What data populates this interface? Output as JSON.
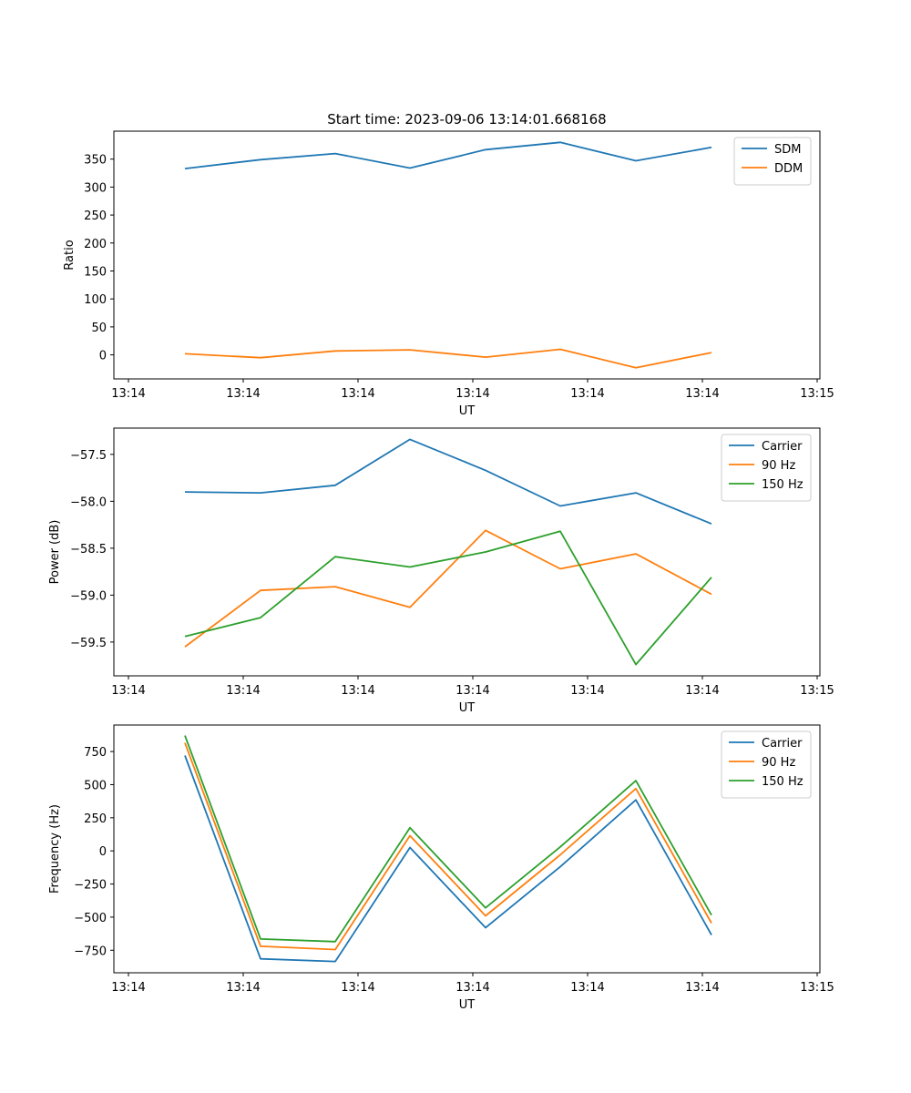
{
  "chart_data": [
    {
      "type": "line",
      "title": "Start time: 2023-09-06 13:14:01.668168",
      "xlabel": "UT",
      "ylabel": "Ratio",
      "x_tick_labels": [
        "13:14",
        "13:14",
        "13:14",
        "13:14",
        "13:14",
        "13:14",
        "13:14",
        "13:15"
      ],
      "y_ticks": [
        0,
        50,
        100,
        150,
        200,
        250,
        300,
        350
      ],
      "ylim": [
        -43,
        400
      ],
      "legend_position": "top-right",
      "series": [
        {
          "name": "SDM",
          "color": "#1f77b4",
          "values": [
            333,
            349,
            360,
            334,
            367,
            380,
            347,
            371
          ]
        },
        {
          "name": "DDM",
          "color": "#ff7f0e",
          "values": [
            2,
            -5,
            7,
            9,
            -4,
            10,
            -23,
            4
          ]
        }
      ]
    },
    {
      "type": "line",
      "title": "",
      "xlabel": "UT",
      "ylabel": "Power (dB)",
      "x_tick_labels": [
        "13:14",
        "13:14",
        "13:14",
        "13:14",
        "13:14",
        "13:14",
        "13:14",
        "13:15"
      ],
      "y_ticks": [
        -59.5,
        -59.0,
        -58.5,
        -58.0,
        -57.5
      ],
      "y_tick_labels": [
        "−59.5",
        "−59.0",
        "−58.5",
        "−58.0",
        "−57.5"
      ],
      "ylim": [
        -59.86,
        -57.22
      ],
      "legend_position": "top-right",
      "series": [
        {
          "name": "Carrier",
          "color": "#1f77b4",
          "values": [
            -57.9,
            -57.91,
            -57.83,
            -57.34,
            -57.67,
            -58.05,
            -57.91,
            -58.24
          ]
        },
        {
          "name": "90 Hz",
          "color": "#ff7f0e",
          "values": [
            -59.55,
            -58.95,
            -58.91,
            -59.13,
            -58.31,
            -58.72,
            -58.56,
            -58.99
          ]
        },
        {
          "name": "150 Hz",
          "color": "#2ca02c",
          "values": [
            -59.44,
            -59.24,
            -58.59,
            -58.7,
            -58.54,
            -58.32,
            -59.74,
            -58.81
          ]
        }
      ]
    },
    {
      "type": "line",
      "title": "",
      "xlabel": "UT",
      "ylabel": "Frequency (Hz)",
      "x_tick_labels": [
        "13:14",
        "13:14",
        "13:14",
        "13:14",
        "13:14",
        "13:14",
        "13:14",
        "13:15"
      ],
      "y_ticks": [
        -750,
        -500,
        -250,
        0,
        250,
        500,
        750
      ],
      "y_tick_labels": [
        "−750",
        "−500",
        "−250",
        "0",
        "250",
        "500",
        "750"
      ],
      "ylim": [
        -920,
        950
      ],
      "legend_position": "top-right",
      "series": [
        {
          "name": "Carrier",
          "color": "#1f77b4",
          "values": [
            720,
            -815,
            -835,
            25,
            -580,
            -120,
            385,
            -635
          ]
        },
        {
          "name": "90 Hz",
          "color": "#ff7f0e",
          "values": [
            815,
            -720,
            -745,
            115,
            -490,
            -30,
            470,
            -545
          ]
        },
        {
          "name": "150 Hz",
          "color": "#2ca02c",
          "values": [
            870,
            -665,
            -685,
            175,
            -430,
            30,
            530,
            -485
          ]
        }
      ]
    }
  ]
}
